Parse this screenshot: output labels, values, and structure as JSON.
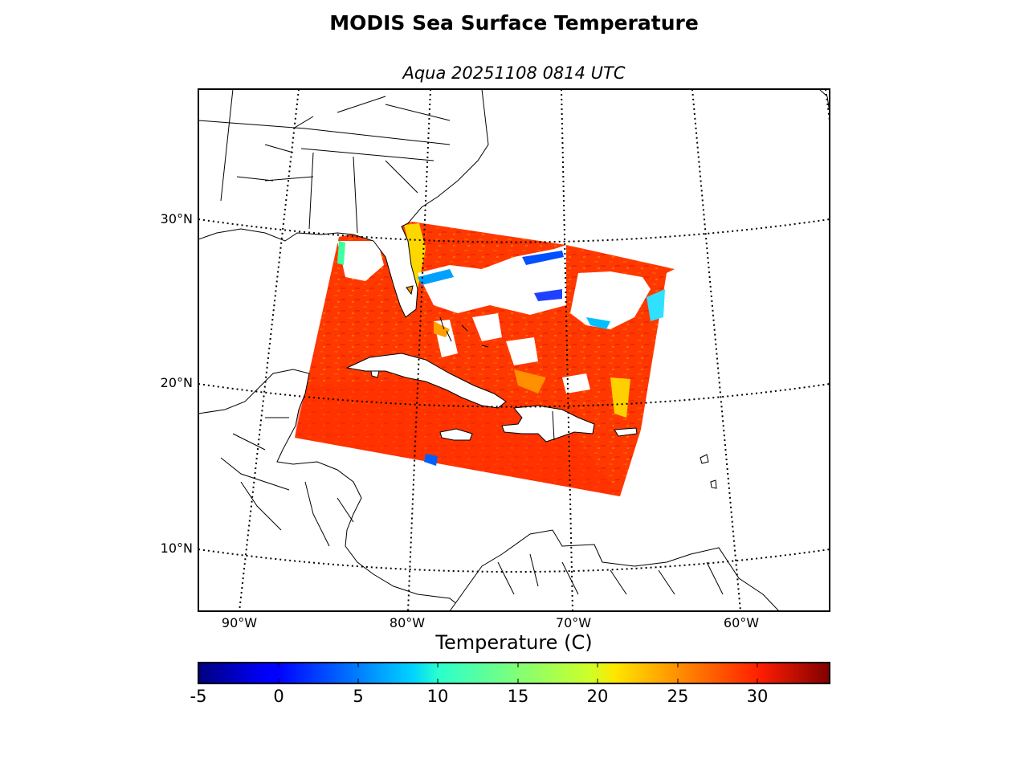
{
  "title": "MODIS Sea Surface Temperature",
  "subtitle": "Aqua 20251108 0814 UTC",
  "map": {
    "lat_labels": [
      "30°N",
      "20°N",
      "10°N"
    ],
    "lon_labels": [
      "90°W",
      "80°W",
      "70°W",
      "60°W"
    ],
    "projection": "conic",
    "graticule_style": "dotted",
    "swath_fill_color": "#ff3a00",
    "land_color": "#ffffff",
    "coastline_color": "#000000",
    "land_features": [
      "southeastern-united-states",
      "florida",
      "gulf-coast",
      "cuba",
      "hispaniola",
      "jamaica",
      "central-america",
      "northern-south-america",
      "lesser-antilles"
    ],
    "cloud_mask_color": "#ffffff"
  },
  "colorbar": {
    "title": "Temperature (C)",
    "tick_labels": [
      "-5",
      "0",
      "5",
      "10",
      "15",
      "20",
      "25",
      "30"
    ],
    "range": [
      -5,
      34.5
    ],
    "colormap": "jet",
    "units": "C"
  }
}
